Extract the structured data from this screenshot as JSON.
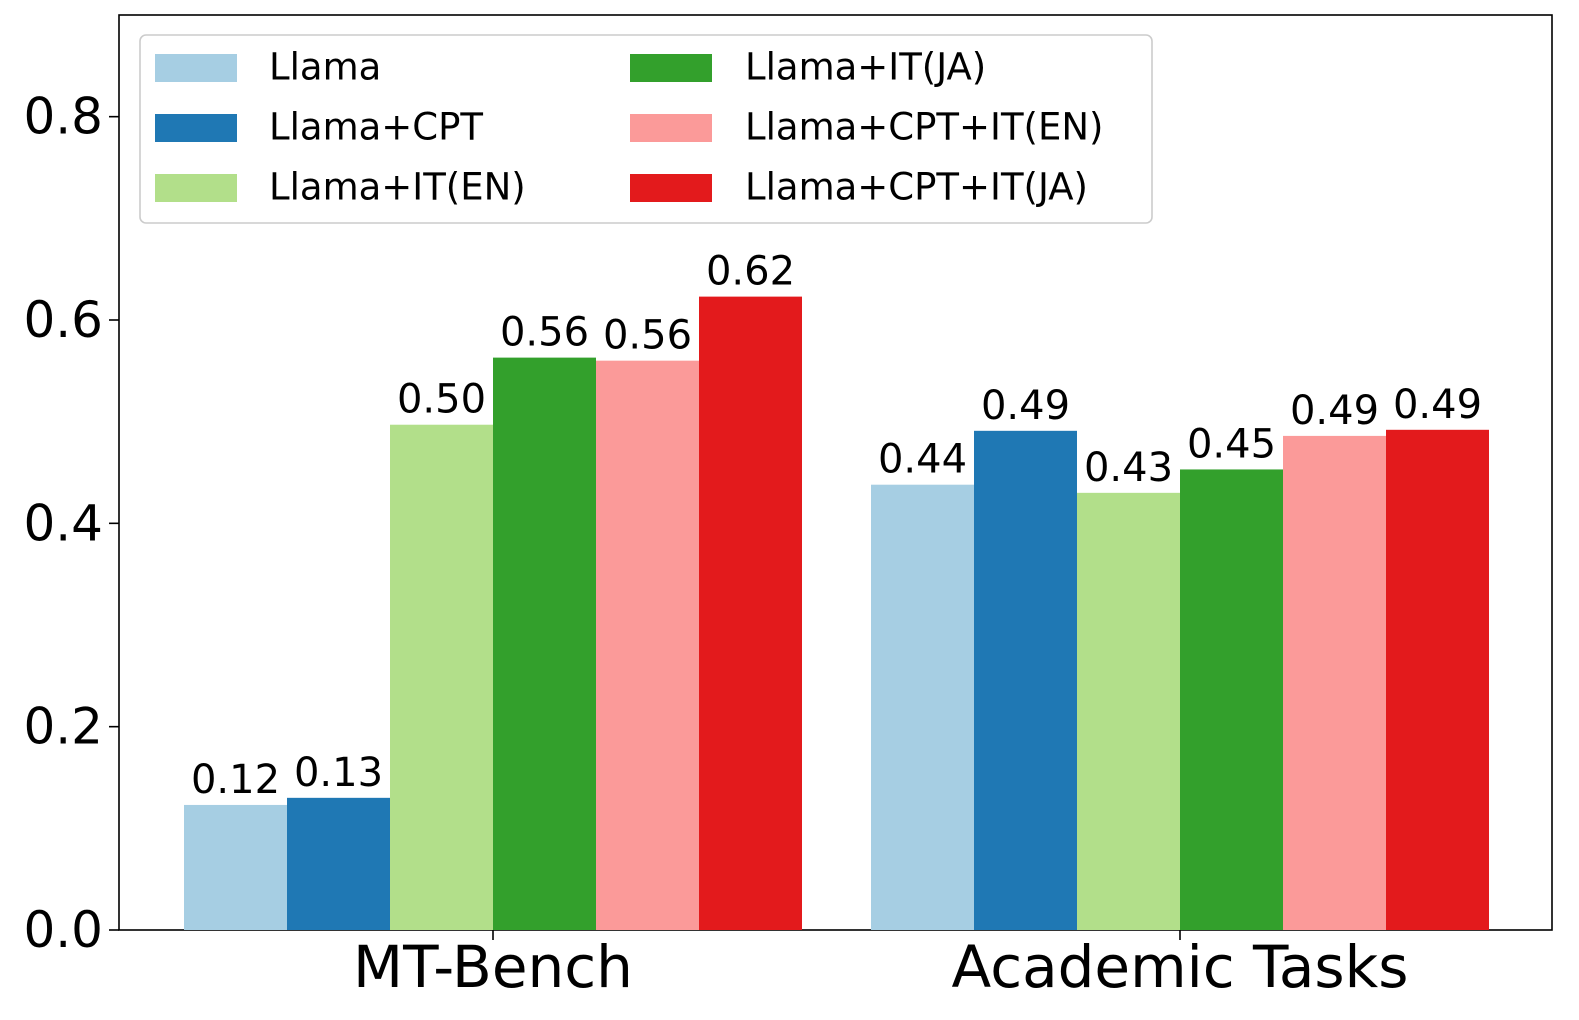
{
  "chart_data": {
    "type": "bar",
    "title": "",
    "xlabel": "",
    "ylabel": "",
    "ylim": [
      0,
      0.9
    ],
    "yticks": [
      "0.0",
      "0.2",
      "0.4",
      "0.6",
      "0.8"
    ],
    "ytick_values": [
      0.0,
      0.2,
      0.4,
      0.6,
      0.8
    ],
    "categories": [
      "MT-Bench",
      "Academic Tasks"
    ],
    "legend_position": "top-left",
    "series": [
      {
        "name": "Llama",
        "color": "#a6cee3",
        "values": [
          0.123,
          0.438
        ],
        "labels": [
          "0.12",
          "0.44"
        ]
      },
      {
        "name": "Llama+CPT",
        "color": "#1f78b4",
        "values": [
          0.13,
          0.491
        ],
        "labels": [
          "0.13",
          "0.49"
        ]
      },
      {
        "name": "Llama+IT(EN)",
        "color": "#b2df8a",
        "values": [
          0.497,
          0.43
        ],
        "labels": [
          "0.50",
          "0.43"
        ]
      },
      {
        "name": "Llama+IT(JA)",
        "color": "#33a02c",
        "values": [
          0.563,
          0.453
        ],
        "labels": [
          "0.56",
          "0.45"
        ]
      },
      {
        "name": "Llama+CPT+IT(EN)",
        "color": "#fb9a99",
        "values": [
          0.56,
          0.486
        ],
        "labels": [
          "0.56",
          "0.49"
        ]
      },
      {
        "name": "Llama+CPT+IT(JA)",
        "color": "#e31a1c",
        "values": [
          0.623,
          0.492
        ],
        "labels": [
          "0.62",
          "0.49"
        ]
      }
    ]
  }
}
